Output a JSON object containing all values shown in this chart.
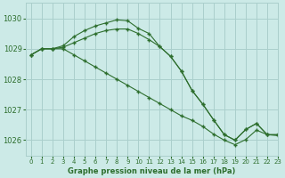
{
  "title": "Graphe pression niveau de la mer (hPa)",
  "background_color": "#cceae7",
  "grid_color": "#aacfcc",
  "line_color": "#2d6e2d",
  "ylim": [
    1025.5,
    1030.5
  ],
  "xlim": [
    -0.5,
    23
  ],
  "yticks": [
    1026,
    1027,
    1028,
    1029,
    1030
  ],
  "xticks": [
    0,
    1,
    2,
    3,
    4,
    5,
    6,
    7,
    8,
    9,
    10,
    11,
    12,
    13,
    14,
    15,
    16,
    17,
    18,
    19,
    20,
    21,
    22,
    23
  ],
  "series": [
    {
      "x": [
        0,
        1,
        2,
        3,
        4,
        5,
        6,
        7,
        8,
        9,
        10,
        11,
        12,
        13,
        14,
        15,
        16,
        17,
        18,
        19,
        20,
        21,
        22,
        23
      ],
      "y": [
        1028.8,
        1029.0,
        1029.0,
        1029.1,
        1029.4,
        1029.6,
        1029.75,
        1029.85,
        1029.95,
        1029.92,
        1029.67,
        1029.5,
        1029.07,
        1028.75,
        1028.27,
        1027.63,
        1027.18,
        1026.67,
        1026.18,
        1026.0,
        1026.35,
        1026.55,
        1026.18,
        1026.18
      ]
    },
    {
      "x": [
        0,
        1,
        2,
        3,
        4,
        5,
        6,
        7,
        8,
        9,
        10,
        11,
        12,
        13,
        14,
        15,
        16,
        17,
        18,
        19,
        20,
        21,
        22,
        23
      ],
      "y": [
        1028.8,
        1029.0,
        1029.0,
        1029.05,
        1029.2,
        1029.35,
        1029.5,
        1029.6,
        1029.65,
        1029.65,
        1029.5,
        1029.3,
        1029.07,
        1028.75,
        1028.27,
        1027.63,
        1027.18,
        1026.67,
        1026.18,
        1026.0,
        1026.35,
        1026.55,
        1026.18,
        1026.18
      ]
    },
    {
      "x": [
        0,
        1,
        2,
        3,
        4,
        5,
        6,
        7,
        8,
        9,
        10,
        11,
        12,
        13,
        14,
        15,
        16,
        17,
        18,
        19,
        20,
        21,
        22,
        23
      ],
      "y": [
        1028.8,
        1029.0,
        1029.0,
        1029.0,
        1028.8,
        1028.6,
        1028.4,
        1028.2,
        1028.0,
        1027.8,
        1027.6,
        1027.4,
        1027.2,
        1027.0,
        1026.8,
        1026.65,
        1026.45,
        1026.2,
        1026.0,
        1025.85,
        1026.02,
        1026.33,
        1026.18,
        1026.15
      ]
    }
  ]
}
